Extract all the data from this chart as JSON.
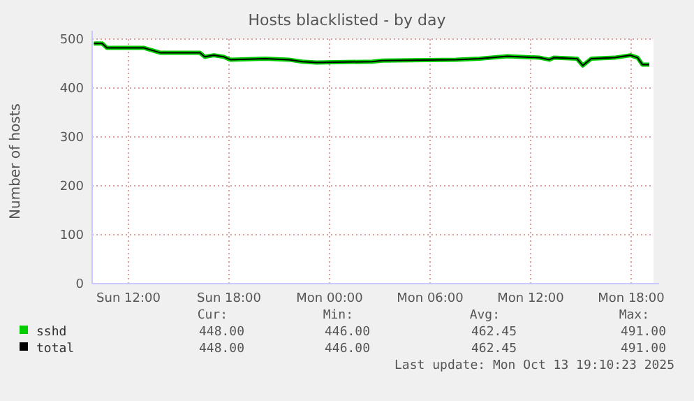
{
  "chart_data": {
    "type": "line",
    "title": "Hosts blacklisted - by day",
    "ylabel": "Number of hosts",
    "x": [
      "2025-10-12T09:56",
      "2025-10-12T10:26",
      "2025-10-12T10:43",
      "2025-10-12T12:56",
      "2025-10-12T13:55",
      "2025-10-12T16:16",
      "2025-10-12T16:33",
      "2025-10-12T17:06",
      "2025-10-12T17:40",
      "2025-10-12T18:05",
      "2025-10-12T20:10",
      "2025-10-12T21:34",
      "2025-10-12T22:23",
      "2025-10-12T23:13",
      "2025-10-13T02:33",
      "2025-10-13T03:07",
      "2025-10-13T07:33",
      "2025-10-13T08:56",
      "2025-10-13T10:37",
      "2025-10-13T12:33",
      "2025-10-13T13:07",
      "2025-10-13T13:23",
      "2025-10-13T14:46",
      "2025-10-13T15:07",
      "2025-10-13T15:37",
      "2025-10-13T17:00",
      "2025-10-13T17:58",
      "2025-10-13T18:23",
      "2025-10-13T18:40",
      "2025-10-13T19:05"
    ],
    "series": [
      {
        "name": "sshd",
        "color": "#00cc00",
        "values": [
          491,
          491,
          482,
          482,
          472,
          472,
          464,
          467,
          464,
          458,
          460,
          458,
          454,
          452,
          454,
          456,
          458,
          460,
          465,
          462,
          458,
          462,
          460,
          446,
          460,
          462,
          467,
          462,
          448,
          448
        ]
      },
      {
        "name": "total",
        "color": "#000000",
        "values": [
          491,
          491,
          482,
          482,
          472,
          472,
          464,
          467,
          464,
          458,
          460,
          458,
          454,
          452,
          454,
          456,
          458,
          460,
          465,
          462,
          458,
          462,
          460,
          446,
          460,
          462,
          467,
          462,
          448,
          448
        ]
      }
    ],
    "xlim": [
      "2025-10-12T09:50",
      "2025-10-13T19:20"
    ],
    "xticks": [
      {
        "value": "2025-10-12T12:00",
        "label": "Sun 12:00"
      },
      {
        "value": "2025-10-12T18:00",
        "label": "Sun 18:00"
      },
      {
        "value": "2025-10-13T00:00",
        "label": "Mon 00:00"
      },
      {
        "value": "2025-10-13T06:00",
        "label": "Mon 06:00"
      },
      {
        "value": "2025-10-13T12:00",
        "label": "Mon 12:00"
      },
      {
        "value": "2025-10-13T18:00",
        "label": "Mon 18:00"
      }
    ],
    "ylim": [
      0,
      500
    ],
    "yticks": [
      0,
      100,
      200,
      300,
      400,
      500
    ],
    "grid": true,
    "legend": "bottom",
    "annotations": [
      "Cur:",
      "Min:",
      "Avg:",
      "Max:",
      "448.00",
      "446.00",
      "462.45",
      "491.00",
      "448.00",
      "446.00",
      "462.45",
      "491.00",
      "Last update: Mon Oct 13 19:10:23 2025"
    ]
  }
}
